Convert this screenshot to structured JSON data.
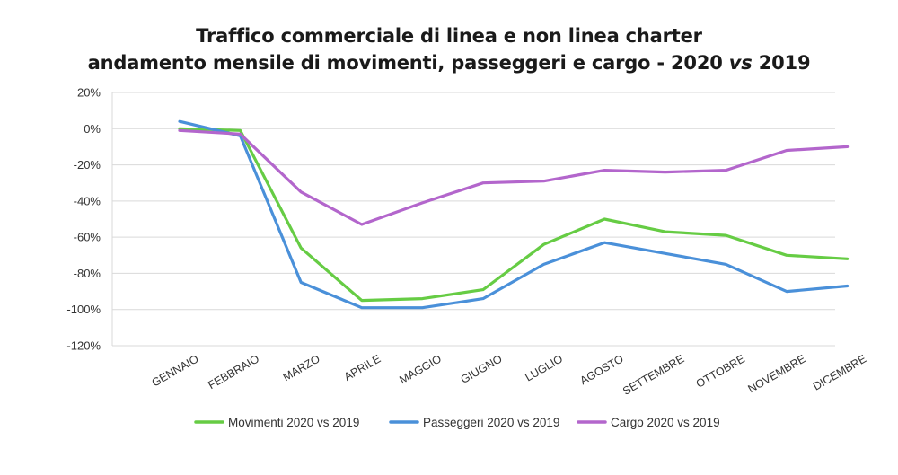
{
  "chart_data": {
    "type": "line",
    "title": "Traffico commerciale di linea e non linea charter",
    "subtitle_pre": "andamento mensile di movimenti, passeggeri e cargo - 2020 ",
    "subtitle_vs": "vs",
    "subtitle_post": " 2019",
    "categories": [
      "GENNAIO",
      "FEBBRAIO",
      "MARZO",
      "APRILE",
      "MAGGIO",
      "GIUGNO",
      "LUGLIO",
      "AGOSTO",
      "SETTEMBRE",
      "OTTOBRE",
      "NOVEMBRE",
      "DICEMBRE"
    ],
    "yticks": [
      "20%",
      "0%",
      "-20%",
      "-40%",
      "-60%",
      "-80%",
      "-100%",
      "-120%"
    ],
    "ylim": [
      -120,
      20
    ],
    "grid": true,
    "legend_position": "bottom",
    "series": [
      {
        "name": "Movimenti 2020 vs 2019",
        "color": "#66cc44",
        "values": [
          0,
          -1,
          -66,
          -95,
          -94,
          -89,
          -64,
          -50,
          -57,
          -59,
          -70,
          -72
        ]
      },
      {
        "name": "Passeggeri 2020 vs 2019",
        "color": "#4a90d9",
        "values": [
          4,
          -4,
          -85,
          -99,
          -99,
          -94,
          -75,
          -63,
          -69,
          -75,
          -90,
          -87
        ]
      },
      {
        "name": "Cargo 2020 vs 2019",
        "color": "#b366cc",
        "values": [
          -1,
          -3,
          -35,
          -53,
          -41,
          -30,
          -29,
          -23,
          -24,
          -23,
          -12,
          -10
        ]
      }
    ]
  }
}
